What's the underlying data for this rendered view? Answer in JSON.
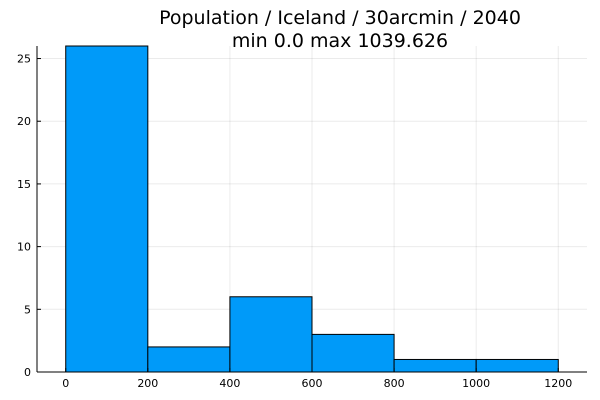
{
  "chart_data": {
    "type": "bar",
    "title": "Population / Iceland / 30arcmin / 2040",
    "subtitle": "min 0.0  max 1039.626",
    "xlabel": "",
    "ylabel": "",
    "bins": [
      {
        "x0": 0,
        "x1": 200,
        "count": 26
      },
      {
        "x0": 200,
        "x1": 400,
        "count": 2
      },
      {
        "x0": 400,
        "x1": 600,
        "count": 6
      },
      {
        "x0": 600,
        "x1": 800,
        "count": 3
      },
      {
        "x0": 800,
        "x1": 1000,
        "count": 1
      },
      {
        "x0": 1000,
        "x1": 1200,
        "count": 1
      }
    ],
    "xlim": [
      -70,
      1270
    ],
    "ylim": [
      0,
      26
    ],
    "xticks": [
      0,
      200,
      400,
      600,
      800,
      1000,
      1200
    ],
    "yticks": [
      0,
      5,
      10,
      15,
      20,
      25
    ],
    "grid": true,
    "bar_color": "#009af9",
    "edge_color": "#000000"
  }
}
